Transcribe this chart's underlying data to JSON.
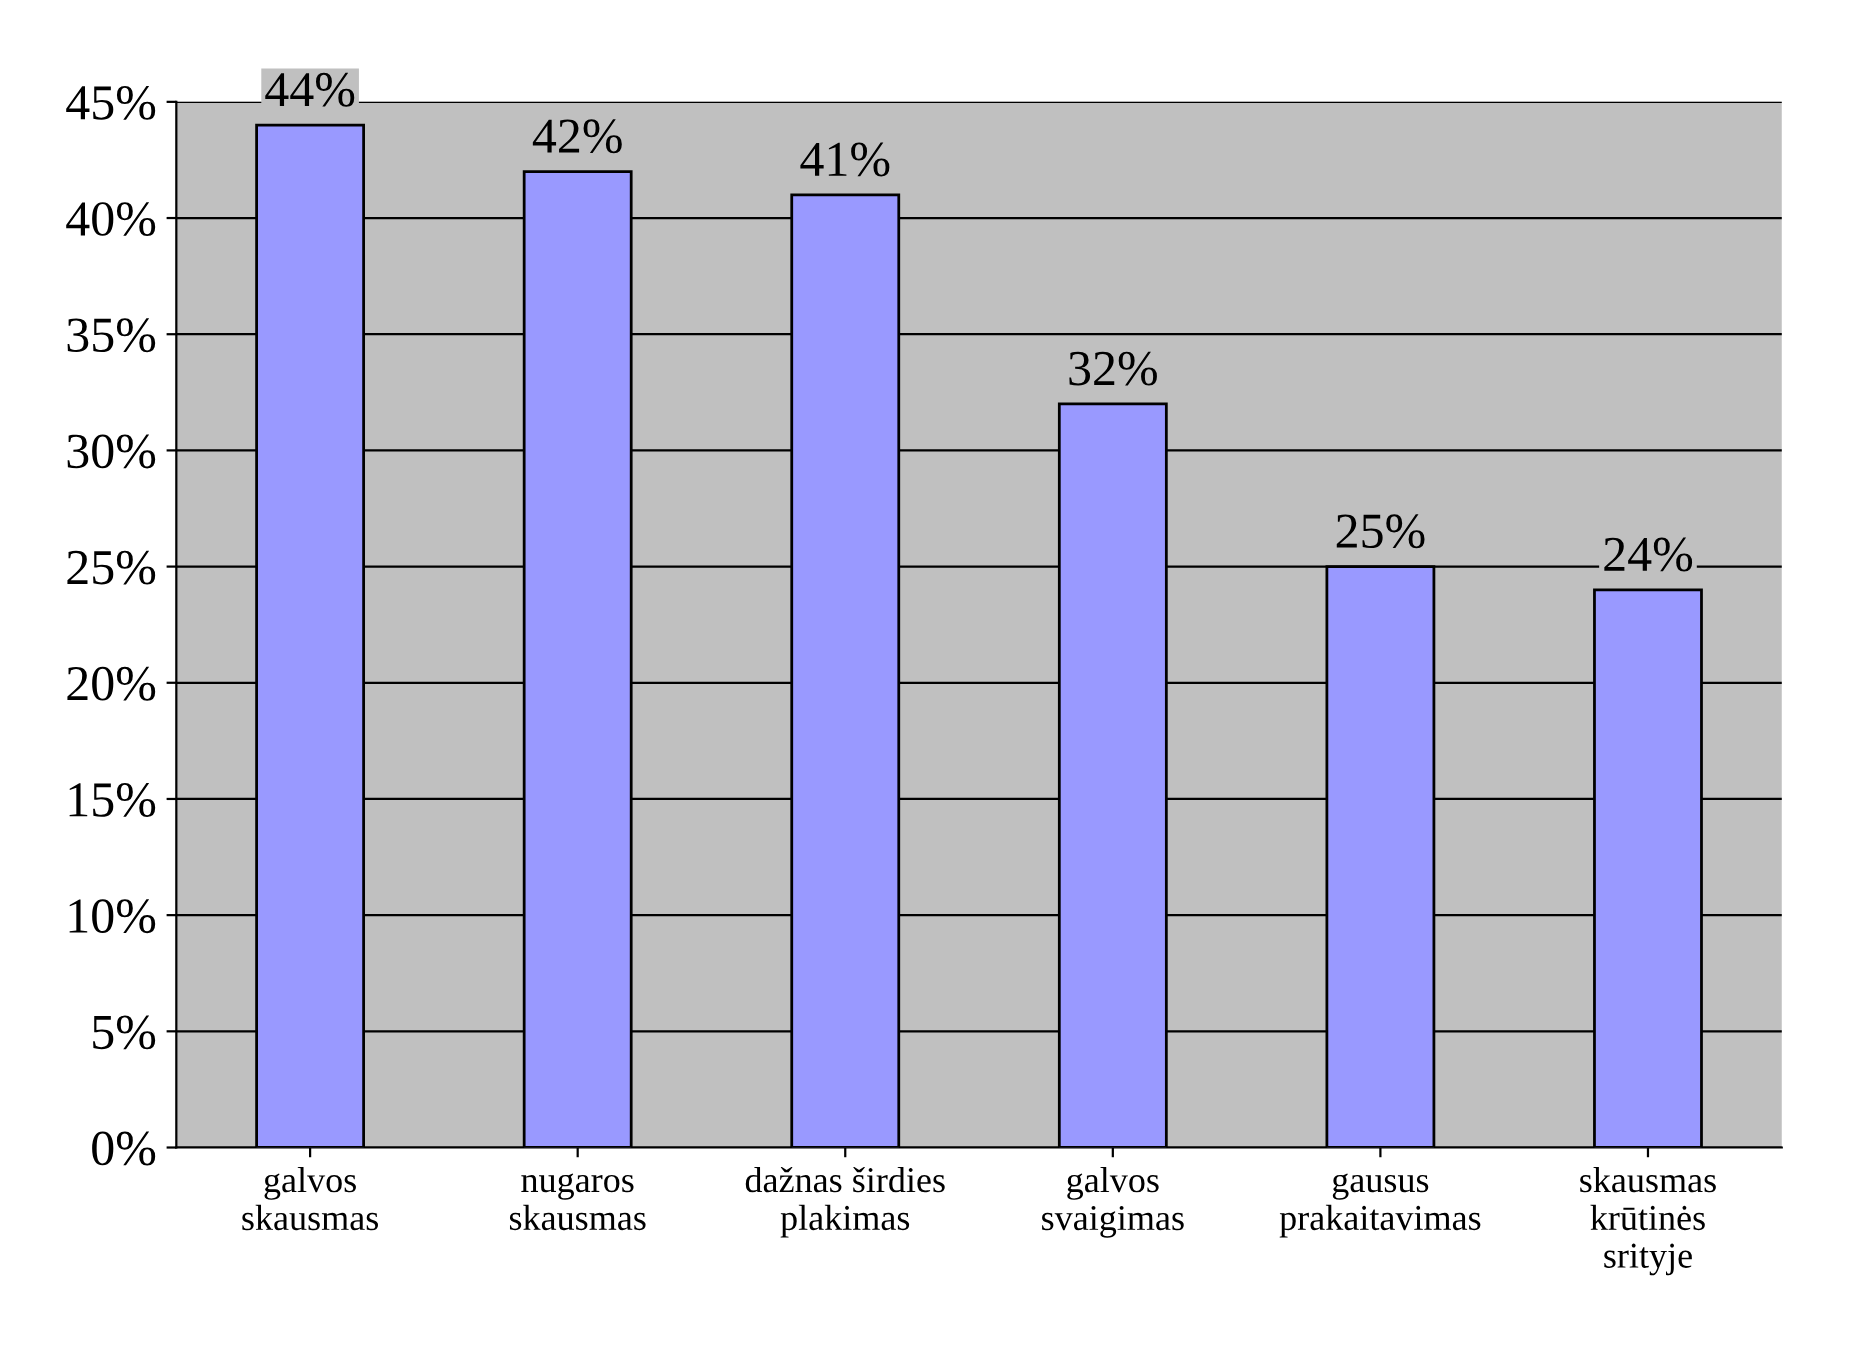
{
  "chart_data": {
    "type": "bar",
    "categories": [
      "galvos\nskausmas",
      "nugaros\nskausmas",
      "dažnas širdies\nplakimas",
      "galvos\nsvaigimas",
      "gausus\nprakaitavimas",
      "skausmas\nkrūtinės\nsrityje"
    ],
    "values": [
      44,
      42,
      41,
      32,
      25,
      24
    ],
    "value_labels": [
      "44%",
      "42%",
      "41%",
      "32%",
      "25%",
      "24%"
    ],
    "color": "#9999ff",
    "ylim": [
      0,
      45
    ],
    "yticks": [
      {
        "value": 0,
        "label": "0%"
      },
      {
        "value": 5,
        "label": "5%"
      },
      {
        "value": 10,
        "label": "10%"
      },
      {
        "value": 15,
        "label": "15%"
      },
      {
        "value": 20,
        "label": "20%"
      },
      {
        "value": 25,
        "label": "25%"
      },
      {
        "value": 30,
        "label": "30%"
      },
      {
        "value": 35,
        "label": "35%"
      },
      {
        "value": 40,
        "label": "40%"
      },
      {
        "value": 45,
        "label": "45%"
      }
    ],
    "grid": "y"
  }
}
